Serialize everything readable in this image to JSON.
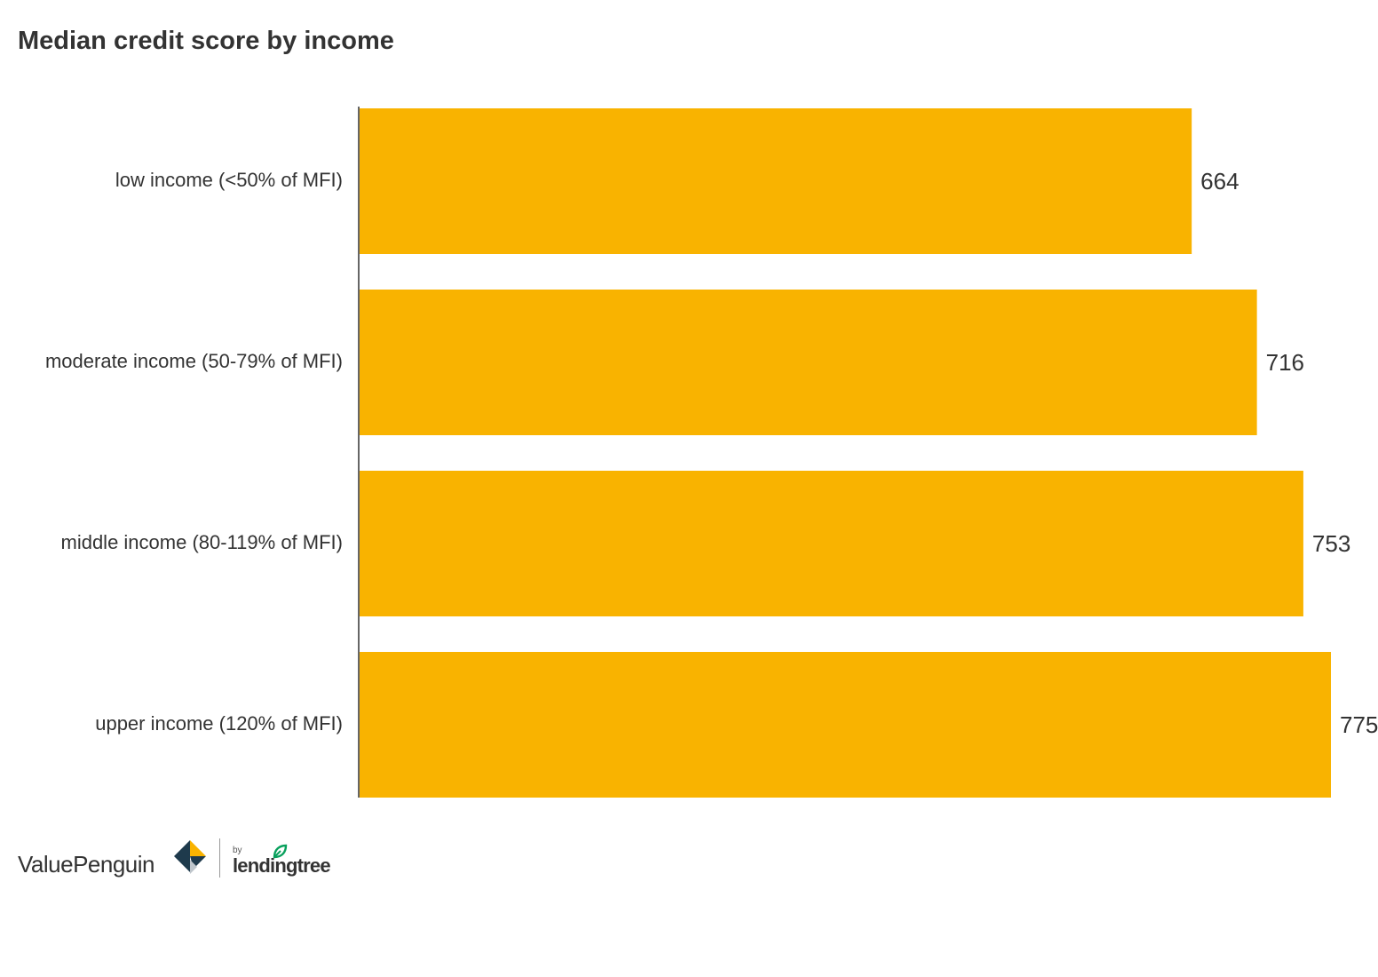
{
  "chart_data": {
    "type": "bar",
    "orientation": "horizontal",
    "title": "Median credit score by income",
    "categories": [
      "low income (<50% of MFI)",
      "moderate income (50-79% of MFI)",
      "middle income (80-119% of MFI)",
      "upper income (120% of MFI)"
    ],
    "values": [
      664,
      716,
      753,
      775
    ],
    "data_labels": [
      "664",
      "716",
      "753",
      "775"
    ],
    "xlim": [
      0,
      775
    ],
    "grid": false,
    "legend": "none",
    "bar_color": "#F9B300"
  },
  "branding": {
    "valuepenguin": "ValuePenguin",
    "by": "by",
    "lendingtree": "lendingtree"
  },
  "colors": {
    "bar": "#F9B300",
    "text": "#333333",
    "axis": "#333333",
    "logo_dark": "#1E3A4C",
    "logo_gold": "#F9B300",
    "logo_green": "#08A05C"
  }
}
